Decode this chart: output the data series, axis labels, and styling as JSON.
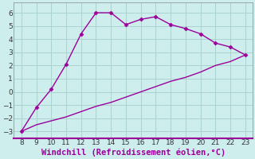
{
  "x": [
    8,
    9,
    10,
    11,
    12,
    13,
    14,
    15,
    16,
    17,
    18,
    19,
    20,
    21,
    22,
    23
  ],
  "y_top": [
    -3,
    -1.2,
    0.2,
    2.1,
    4.4,
    6.0,
    6.0,
    5.1,
    5.5,
    5.7,
    5.1,
    4.8,
    4.4,
    3.7,
    3.4,
    2.8
  ],
  "y_bottom": [
    -3,
    -2.5,
    -2.2,
    -1.9,
    -1.5,
    -1.1,
    -0.8,
    -0.4,
    0.0,
    0.4,
    0.8,
    1.1,
    1.5,
    2.0,
    2.3,
    2.8
  ],
  "line_color": "#9b009b",
  "marker": "D",
  "marker_size": 2.5,
  "background_color": "#ceeeed",
  "grid_color": "#aad4d0",
  "xlabel": "Windchill (Refroidissement éolien,°C)",
  "xlim": [
    7.5,
    23.5
  ],
  "ylim": [
    -3.5,
    6.8
  ],
  "yticks": [
    -3,
    -2,
    -1,
    0,
    1,
    2,
    3,
    4,
    5,
    6
  ],
  "xticks": [
    8,
    9,
    10,
    11,
    12,
    13,
    14,
    15,
    16,
    17,
    18,
    19,
    20,
    21,
    22,
    23
  ],
  "xlabel_color": "#9b009b",
  "xlabel_fontsize": 7.5,
  "tick_fontsize": 6.5,
  "line_width": 1.0,
  "spine_color": "#9b009b",
  "tick_color": "#333333"
}
